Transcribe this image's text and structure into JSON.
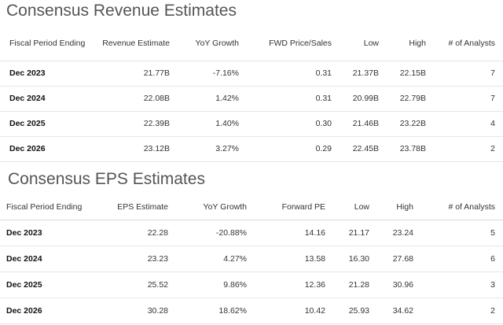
{
  "revenue": {
    "title": "Consensus Revenue Estimates",
    "headers": [
      "Fiscal Period Ending",
      "Revenue Estimate",
      "YoY Growth",
      "FWD Price/Sales",
      "Low",
      "High",
      "# of Analysts"
    ],
    "rows": [
      [
        "Dec 2023",
        "21.77B",
        "-7.16%",
        "0.31",
        "21.37B",
        "22.15B",
        "7"
      ],
      [
        "Dec 2024",
        "22.08B",
        "1.42%",
        "0.31",
        "20.99B",
        "22.79B",
        "7"
      ],
      [
        "Dec 2025",
        "22.39B",
        "1.40%",
        "0.30",
        "21.46B",
        "23.22B",
        "4"
      ],
      [
        "Dec 2026",
        "23.12B",
        "3.27%",
        "0.29",
        "22.45B",
        "23.78B",
        "2"
      ]
    ]
  },
  "eps": {
    "title": "Consensus EPS Estimates",
    "headers": [
      "Fiscal Period Ending",
      "EPS Estimate",
      "YoY Growth",
      "Forward PE",
      "Low",
      "High",
      "# of Analysts"
    ],
    "rows": [
      [
        "Dec 2023",
        "22.28",
        "-20.88%",
        "14.16",
        "21.17",
        "23.24",
        "5"
      ],
      [
        "Dec 2024",
        "23.23",
        "4.27%",
        "13.58",
        "16.30",
        "27.68",
        "6"
      ],
      [
        "Dec 2025",
        "25.52",
        "9.86%",
        "12.36",
        "21.28",
        "30.96",
        "3"
      ],
      [
        "Dec 2026",
        "30.28",
        "18.62%",
        "10.42",
        "25.93",
        "34.62",
        "2"
      ]
    ]
  }
}
